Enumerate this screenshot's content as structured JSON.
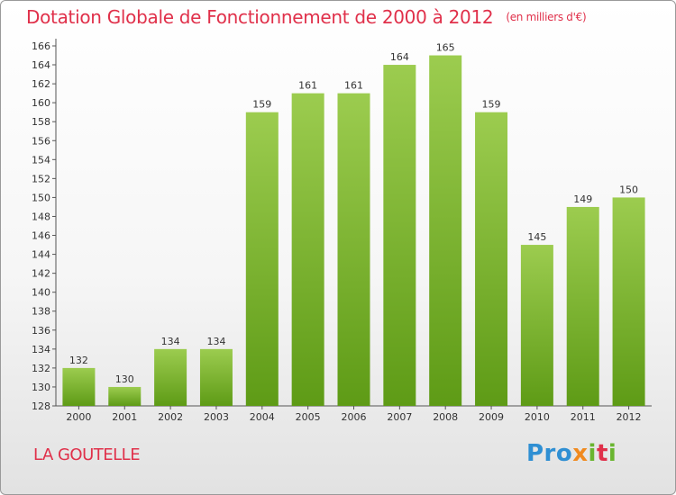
{
  "title": "Dotation Globale de Fonctionnement de 2000 à 2012",
  "subtitle": "(en milliers d'€)",
  "place": "LA GOUTELLE",
  "logo": {
    "p1": "Pro",
    "p2": "x",
    "p3": "i",
    "p4": "t",
    "p5": "i"
  },
  "colors": {
    "bar_light": "#9ccc4f",
    "bar_dark": "#5e9b16",
    "title": "#e0304a"
  },
  "chart_data": {
    "type": "bar",
    "categories": [
      "2000",
      "2001",
      "2002",
      "2003",
      "2004",
      "2005",
      "2006",
      "2007",
      "2008",
      "2009",
      "2010",
      "2011",
      "2012"
    ],
    "values": [
      132,
      130,
      134,
      134,
      159,
      161,
      161,
      164,
      165,
      159,
      145,
      149,
      150
    ],
    "ylim": [
      128,
      166
    ],
    "ytick_step": 2,
    "grid": false,
    "legend": "none"
  }
}
